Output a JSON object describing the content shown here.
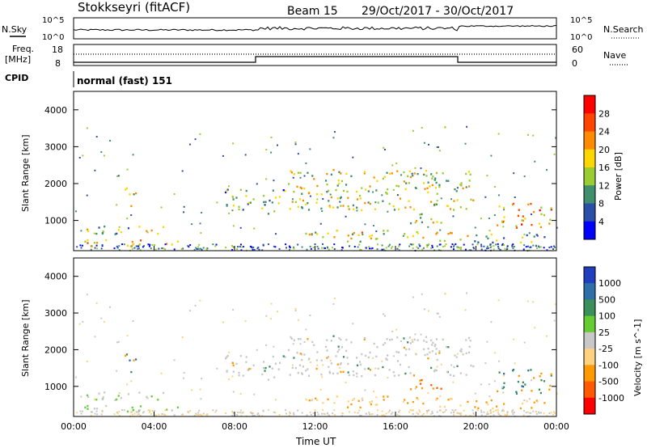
{
  "header": {
    "station": "Stokkseyri (fitACF)",
    "beam": "Beam 15",
    "date_range": "29/Oct/2017 - 30/Oct/2017"
  },
  "panels": {
    "nsky_label": "N.Sky",
    "nsearch_label": "N.Search",
    "freq_label": "Freq.",
    "freq_unit": "[MHz]",
    "nave_label": "Nave",
    "cpid_label": "CPID",
    "cpid_text": "normal (fast) 151",
    "nsky_ticks_left": [
      "10^5",
      "10^0"
    ],
    "nsky_ticks_right": [
      "10^5",
      "10^0"
    ],
    "freq_ticks_left": [
      "18",
      "8"
    ],
    "nave_ticks_right": [
      "60",
      "0"
    ]
  },
  "chart_data": [
    {
      "type": "heatmap",
      "title": "Power",
      "xlabel": "",
      "ylabel": "Slant Range [km]",
      "colorbar_label": "Power [dB]",
      "colorbar_ticks": [
        "4",
        "8",
        "12",
        "16",
        "20",
        "24",
        "28"
      ],
      "colorbar_colors": [
        "#0000ff",
        "#2b4fa8",
        "#3f8f6f",
        "#9acd32",
        "#ffd700",
        "#ff8c00",
        "#ff4500",
        "#ff0000"
      ],
      "x_range_hours": [
        0,
        24
      ],
      "ylim": [
        180,
        4500
      ],
      "yticks": [
        "1000",
        "2000",
        "3000",
        "4000"
      ],
      "scatter_regions": [
        {
          "t": [
            2.5,
            3.2
          ],
          "r": [
            1400,
            1900
          ],
          "level": 0.55
        },
        {
          "t": [
            0.3,
            4.5
          ],
          "r": [
            650,
            900
          ],
          "level": 0.45
        },
        {
          "t": [
            0.5,
            5.5
          ],
          "r": [
            300,
            500
          ],
          "level": 0.6
        },
        {
          "t": [
            7.5,
            10.5
          ],
          "r": [
            1200,
            1900
          ],
          "level": 0.35
        },
        {
          "t": [
            10.5,
            20.0
          ],
          "r": [
            1300,
            2400
          ],
          "level": 0.5
        },
        {
          "t": [
            11.5,
            19.5
          ],
          "r": [
            450,
            750
          ],
          "level": 0.55
        },
        {
          "t": [
            16.5,
            18.5
          ],
          "r": [
            900,
            1200
          ],
          "level": 0.5
        },
        {
          "t": [
            19.5,
            23.5
          ],
          "r": [
            400,
            650
          ],
          "level": 0.4
        },
        {
          "t": [
            21.0,
            23.8
          ],
          "r": [
            800,
            1500
          ],
          "level": 0.65
        }
      ]
    },
    {
      "type": "heatmap",
      "title": "Velocity",
      "xlabel": "Time UT",
      "ylabel": "Slant Range [km]",
      "colorbar_label": "Velocity [m s^-1]",
      "colorbar_ticks": [
        "1000",
        "500",
        "100",
        "25",
        "-25",
        "-100",
        "-500",
        "-1000"
      ],
      "colorbar_colors": [
        "#1f3fbf",
        "#2e6fa8",
        "#3a8f5a",
        "#66cc33",
        "#c8c8c8",
        "#ffd27f",
        "#ff9a00",
        "#ff5a00",
        "#ff0000"
      ],
      "x_range_hours": [
        0,
        24
      ],
      "ylim": [
        180,
        4500
      ],
      "yticks": [
        "1000",
        "2000",
        "3000",
        "4000"
      ],
      "xticks": [
        "00:00",
        "04:00",
        "08:00",
        "12:00",
        "16:00",
        "20:00",
        "00:00"
      ]
    }
  ]
}
